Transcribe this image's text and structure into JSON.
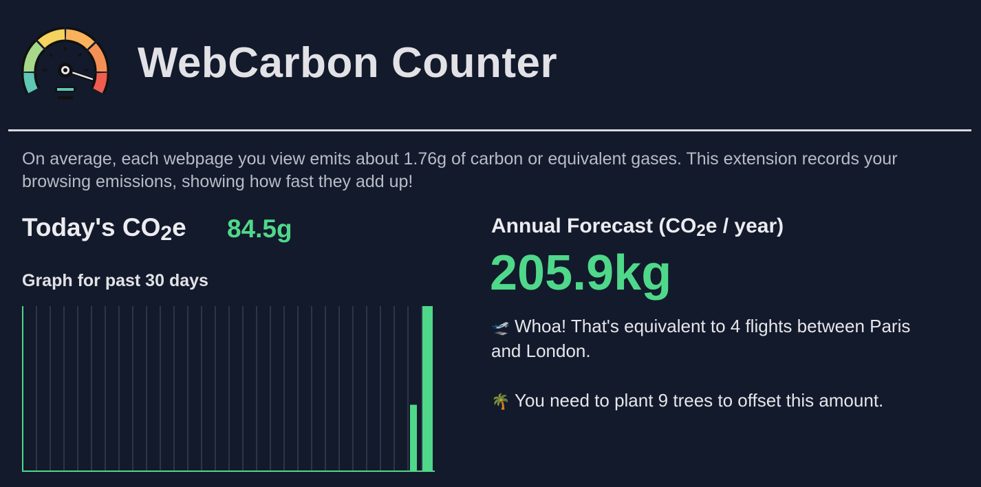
{
  "header": {
    "title": "WebCarbon Counter",
    "logo_icon": "speedometer-gauge-icon"
  },
  "intro": "On average, each webpage you view emits about 1.76g of carbon or equivalent gases. This extension records your browsing emissions, showing how fast they add up!",
  "today": {
    "label_prefix": "Today's CO",
    "label_sub": "2",
    "label_suffix": "e",
    "value": "84.5g"
  },
  "graph": {
    "label": "Graph for past 30 days"
  },
  "forecast": {
    "label_prefix": "Annual Forecast (CO",
    "label_sub": "2",
    "label_suffix": "e / year)",
    "value": "205.9kg"
  },
  "facts": [
    {
      "icon": "airplane-icon",
      "emoji": "🛫",
      "text": "Whoa! That's equivalent to 4 flights between Paris and London."
    },
    {
      "icon": "palm-tree-icon",
      "emoji": "🌴",
      "text": "You need to plant 9 trees to offset this amount."
    }
  ],
  "colors": {
    "background": "#131a2c",
    "accent_green": "#4fd88a",
    "text": "#e6e6ea"
  },
  "chart_data": {
    "type": "bar",
    "days": 30,
    "values": [
      0,
      0,
      0,
      0,
      0,
      0,
      0,
      0,
      0,
      0,
      0,
      0,
      0,
      0,
      0,
      0,
      0,
      0,
      0,
      0,
      0,
      0,
      0,
      0,
      0,
      0,
      0,
      0,
      34,
      84.5
    ],
    "ylim": [
      0,
      84.5
    ],
    "grid": true,
    "bar_color": "#4fd88a",
    "grid_color": "#4a5060"
  }
}
